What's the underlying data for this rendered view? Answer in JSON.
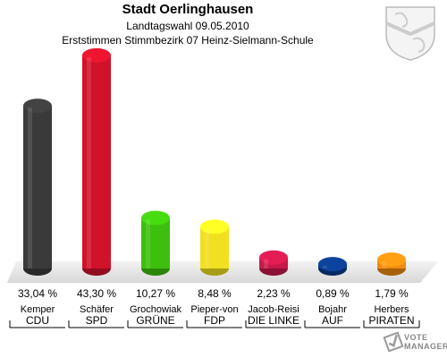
{
  "header": {
    "title": "Stadt Oerlinghausen",
    "subtitle": "Landtagswahl 09.05.2010",
    "subtitle2": "Erststimmen Stimmbezirk 07 Heinz-Sielmann-Schule"
  },
  "watermark": {
    "line1": "VOTE",
    "line2": "MANAGER"
  },
  "chart_data": {
    "type": "bar",
    "categories": [
      "CDU",
      "SPD",
      "GRÜNE",
      "FDP",
      "DIE LINKE",
      "AUF",
      "PIRATEN"
    ],
    "candidates": [
      "Kemper",
      "Schäfer",
      "Grochowiak",
      "Pieper-von",
      "Jacob-Reisi",
      "Bojahr",
      "Herbers"
    ],
    "values": [
      33.04,
      43.3,
      10.27,
      8.48,
      2.23,
      0.89,
      1.79
    ],
    "value_labels": [
      "33,04 %",
      "43,30 %",
      "10,27 %",
      "8,48 %",
      "2,23 %",
      "0,89 %",
      "1,79 %"
    ],
    "colors": [
      "#3a3a3a",
      "#d0122a",
      "#3ebf0e",
      "#f0e020",
      "#c8184a",
      "#0a3a8a",
      "#f08a10"
    ],
    "ylim": [
      0,
      45
    ],
    "grid": false
  }
}
